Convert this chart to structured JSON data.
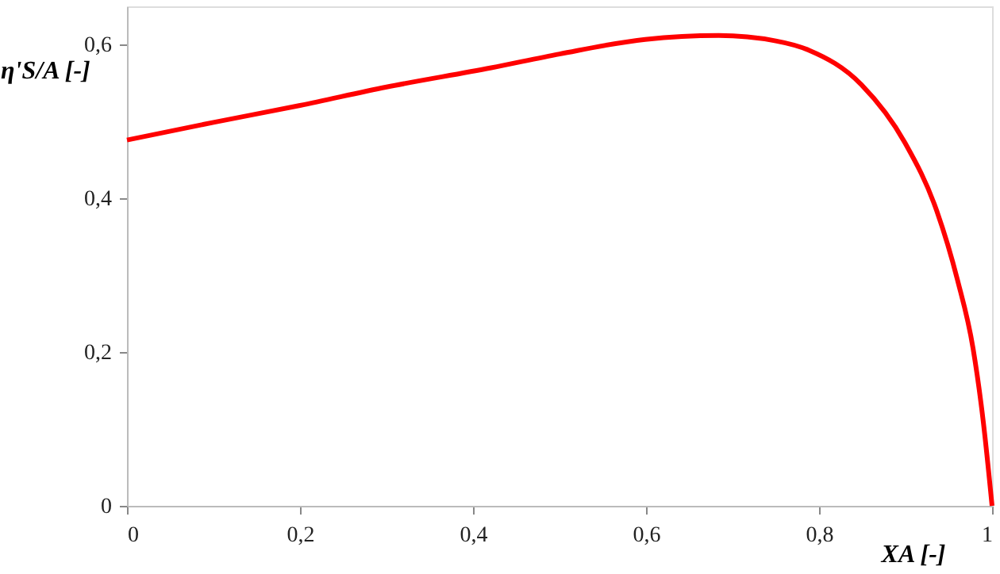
{
  "chart_data": {
    "type": "line",
    "xlabel": "XA [-]",
    "ylabel": "η'S/A [-]",
    "x": [
      0,
      0.1,
      0.2,
      0.3,
      0.421,
      0.5,
      0.599,
      0.684,
      0.75,
      0.788,
      0.849,
      0.899,
      0.936,
      0.96,
      0.978,
      0.99,
      1
    ],
    "series": [
      {
        "color": "#ff0000",
        "values": [
          0.476,
          0.499,
          0.521,
          0.545,
          0.57,
          0.588,
          0.607,
          0.612,
          0.605,
          0.593,
          0.548,
          0.473,
          0.384,
          0.294,
          0.205,
          0.108,
          0
        ]
      }
    ],
    "xlim": [
      0,
      1
    ],
    "ylim": [
      0,
      0.65
    ],
    "xticks": [
      0,
      {
        "value": 0.2,
        "label": "0,2"
      },
      {
        "value": 0.4,
        "label": "0,4"
      },
      {
        "value": 0.6,
        "label": "0,6"
      },
      {
        "value": 0.8,
        "label": "0,8"
      },
      1
    ],
    "yticks": [
      0,
      {
        "value": 0.2,
        "label": "0,2"
      },
      {
        "value": 0.4,
        "label": "0,4"
      },
      {
        "value": 0.6,
        "label": "0,6"
      }
    ],
    "marker": "none",
    "line_style": "solid"
  }
}
